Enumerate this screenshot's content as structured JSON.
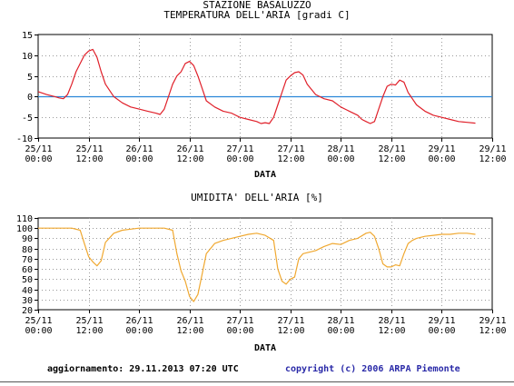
{
  "chart_data": [
    {
      "type": "line",
      "title": "STAZIONE BASALUZZO",
      "subtitle": "TEMPERATURA DELL'ARIA [gradi C]",
      "xlabel": "DATA",
      "ylabel": "",
      "x_ticks": [
        [
          "25/11",
          "00:00"
        ],
        [
          "25/11",
          "12:00"
        ],
        [
          "26/11",
          "00:00"
        ],
        [
          "26/11",
          "12:00"
        ],
        [
          "27/11",
          "00:00"
        ],
        [
          "27/11",
          "12:00"
        ],
        [
          "28/11",
          "00:00"
        ],
        [
          "28/11",
          "12:00"
        ],
        [
          "29/11",
          "00:00"
        ],
        [
          "29/11",
          "12:00"
        ]
      ],
      "y_ticks": [
        "15",
        "10",
        "5",
        "0",
        "-5",
        "-10"
      ],
      "ylim": [
        -10,
        15
      ],
      "xlim_hours": [
        0,
        108
      ],
      "reference_line": 0,
      "grid": true,
      "colors": {
        "series": "#e0202a",
        "reference": "#2a86d8"
      },
      "series": [
        {
          "x_hours": [
            0,
            2,
            4,
            5,
            6,
            7,
            8,
            9,
            10,
            11,
            12,
            13,
            14,
            15,
            16,
            18,
            20,
            22,
            24,
            26,
            28,
            29,
            30,
            31,
            32,
            33,
            34,
            35,
            36,
            37,
            38,
            39,
            40,
            42,
            44,
            46,
            48,
            50,
            52,
            53,
            54,
            55,
            56,
            57,
            58,
            59,
            60,
            61,
            62,
            63,
            64,
            66,
            68,
            70,
            72,
            74,
            76,
            77,
            78,
            79,
            80,
            81,
            82,
            83,
            84,
            85,
            86,
            87,
            88,
            90,
            92,
            94,
            96,
            98,
            100,
            102,
            104
          ],
          "y": [
            1.2,
            0.5,
            0.0,
            -0.3,
            -0.5,
            0.5,
            3,
            6,
            8,
            10,
            11,
            11.4,
            9.5,
            6,
            3,
            0,
            -1.5,
            -2.5,
            -3,
            -3.5,
            -4,
            -4.3,
            -3,
            0,
            3,
            5,
            6,
            8,
            8.5,
            7.5,
            5,
            2,
            -1,
            -2.5,
            -3.5,
            -4,
            -5,
            -5.5,
            -6,
            -6.5,
            -6.3,
            -6.5,
            -5,
            -2,
            1,
            4,
            5,
            5.8,
            6,
            5.2,
            3,
            0.5,
            -0.5,
            -1,
            -2.5,
            -3.5,
            -4.5,
            -5.5,
            -6,
            -6.5,
            -6,
            -3,
            0,
            2.5,
            3,
            2.8,
            4,
            3.5,
            1,
            -2,
            -3.5,
            -4.5,
            -5,
            -5.5,
            -6,
            -6.2,
            -6.4
          ]
        }
      ]
    },
    {
      "type": "line",
      "title": "UMIDITA' DELL'ARIA [%]",
      "xlabel": "DATA",
      "ylabel": "",
      "x_ticks": [
        [
          "25/11",
          "00:00"
        ],
        [
          "25/11",
          "12:00"
        ],
        [
          "26/11",
          "00:00"
        ],
        [
          "26/11",
          "12:00"
        ],
        [
          "27/11",
          "00:00"
        ],
        [
          "27/11",
          "12:00"
        ],
        [
          "28/11",
          "00:00"
        ],
        [
          "28/11",
          "12:00"
        ],
        [
          "29/11",
          "00:00"
        ],
        [
          "29/11",
          "12:00"
        ]
      ],
      "y_ticks": [
        "110",
        "100",
        "90",
        "80",
        "70",
        "60",
        "50",
        "40",
        "30",
        "20"
      ],
      "ylim": [
        20,
        110
      ],
      "xlim_hours": [
        0,
        108
      ],
      "grid": true,
      "colors": {
        "series": "#f0a830"
      },
      "series": [
        {
          "x_hours": [
            0,
            4,
            8,
            10,
            11,
            12,
            13,
            14,
            15,
            16,
            18,
            20,
            22,
            24,
            26,
            28,
            30,
            32,
            33,
            34,
            35,
            36,
            37,
            38,
            39,
            40,
            42,
            44,
            46,
            48,
            50,
            52,
            54,
            56,
            57,
            58,
            59,
            60,
            61,
            62,
            63,
            64,
            66,
            68,
            70,
            72,
            74,
            76,
            78,
            79,
            80,
            81,
            82,
            83,
            84,
            85,
            86,
            87,
            88,
            89,
            90,
            92,
            94,
            96,
            98,
            100,
            102,
            104
          ],
          "y": [
            100,
            100,
            100,
            98,
            85,
            72,
            67,
            63,
            68,
            86,
            95,
            98,
            99,
            100,
            100,
            100,
            100,
            98,
            75,
            58,
            48,
            33,
            28,
            35,
            55,
            75,
            85,
            88,
            90,
            92,
            94,
            95,
            93,
            88,
            60,
            48,
            45,
            50,
            52,
            70,
            75,
            76,
            78,
            82,
            85,
            84,
            88,
            90,
            95,
            96,
            92,
            80,
            65,
            62,
            62,
            64,
            63,
            75,
            85,
            88,
            90,
            92,
            93,
            94,
            94,
            95,
            95,
            94
          ]
        }
      ]
    }
  ],
  "footer": {
    "update": "aggiornamento: 29.11.2013 07:20 UTC",
    "copyright": "copyright (c) 2006 ARPA Piemonte"
  }
}
